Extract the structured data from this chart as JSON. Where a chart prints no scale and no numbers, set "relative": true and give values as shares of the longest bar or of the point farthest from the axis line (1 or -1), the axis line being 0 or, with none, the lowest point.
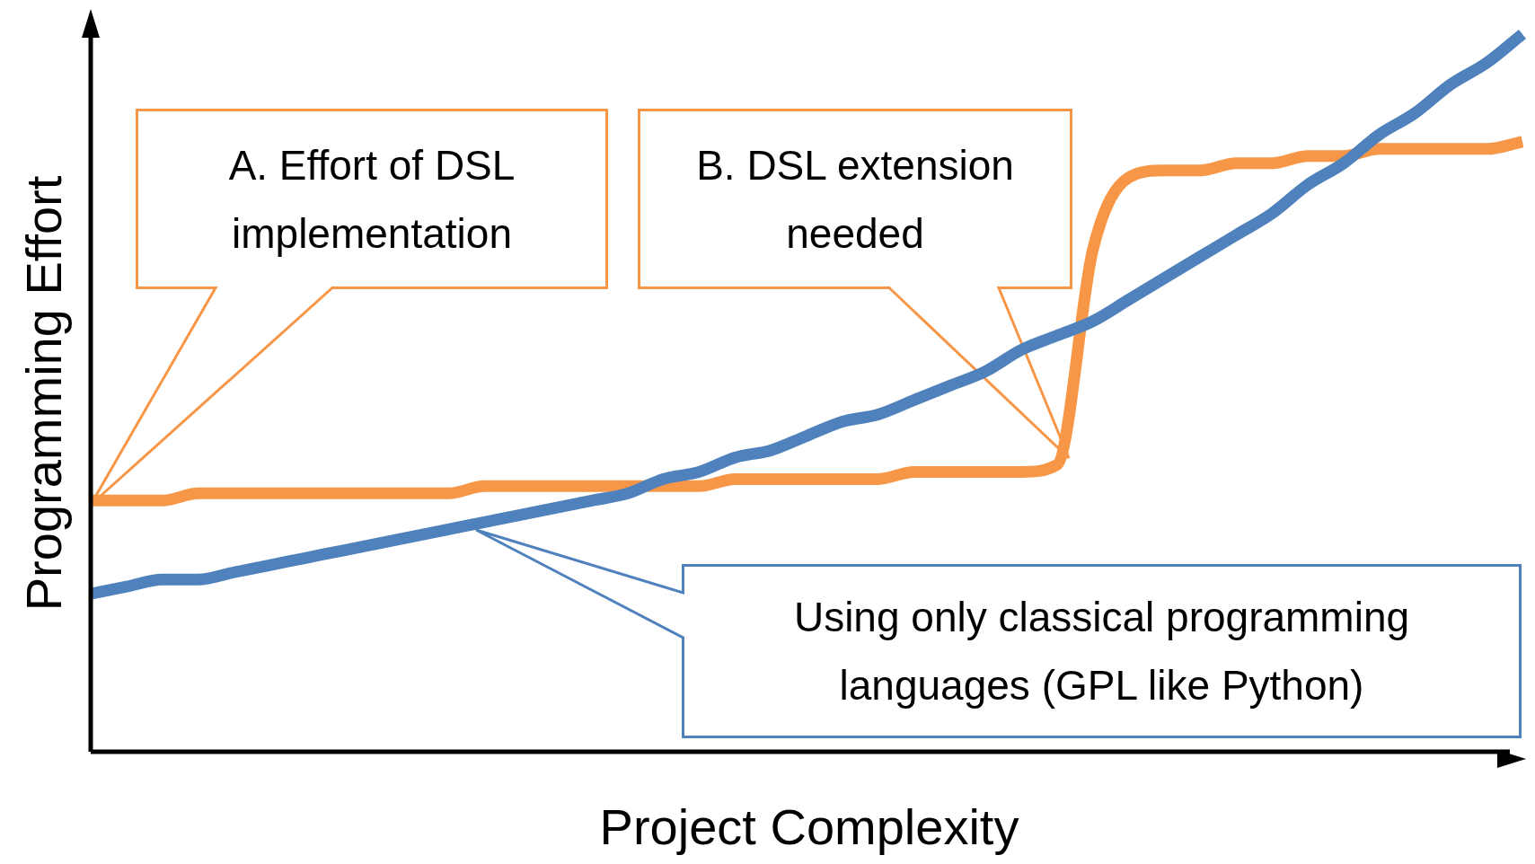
{
  "chart_data": {
    "type": "line",
    "relative": true,
    "xlabel": "Project Complexity",
    "ylabel": "Programming Effort",
    "categories": [
      null,
      null,
      null,
      null,
      null,
      null,
      null,
      null,
      null,
      null,
      null,
      null,
      null,
      null,
      null,
      null,
      null,
      null,
      null,
      null,
      null,
      null,
      null,
      null,
      null,
      null,
      null,
      null,
      null,
      null,
      null,
      null,
      null,
      null,
      null,
      null,
      null,
      null,
      null,
      null,
      null
    ],
    "series": [
      {
        "color": "#4f81bd",
        "values": [
          0.22,
          0.23,
          0.24,
          0.24,
          0.25,
          0.26,
          0.27,
          0.28,
          0.29,
          0.3,
          0.31,
          0.32,
          0.33,
          0.34,
          0.35,
          0.36,
          0.38,
          0.39,
          0.41,
          0.42,
          0.44,
          0.46,
          0.47,
          0.49,
          0.51,
          0.53,
          0.56,
          0.58,
          0.6,
          0.63,
          0.66,
          0.69,
          0.72,
          0.75,
          0.79,
          0.82,
          0.86,
          0.89,
          0.93,
          0.96,
          1
        ]
      },
      {
        "color": "#f79646",
        "values": [
          0.35,
          0.35,
          0.35,
          0.36,
          0.36,
          0.36,
          0.36,
          0.36,
          0.36,
          0.36,
          0.36,
          0.37,
          0.37,
          0.37,
          0.37,
          0.37,
          0.37,
          0.37,
          0.38,
          0.38,
          0.38,
          0.38,
          0.38,
          0.39,
          0.39,
          0.39,
          0.39,
          0.4,
          0.7,
          0.8,
          0.81,
          0.81,
          0.82,
          0.82,
          0.83,
          0.83,
          0.84,
          0.84,
          0.84,
          0.84,
          0.85
        ]
      }
    ],
    "annotations": [
      "A. Effort of DSL implementation",
      "B. DSL extension needed",
      "Using only classical programming languages (GPL like Python)"
    ],
    "grid": false,
    "legend": false,
    "marker": "none",
    "line_style": "solid"
  }
}
